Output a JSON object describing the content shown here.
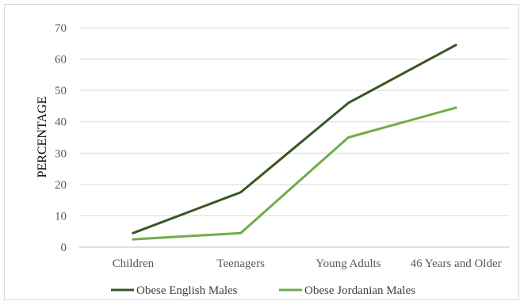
{
  "chart_data": {
    "type": "line",
    "title": "",
    "xlabel": "",
    "ylabel": "PERCENTAGE",
    "categories": [
      "Children",
      "Teenagers",
      "Young Adults",
      "46 Years and Older"
    ],
    "ylim": [
      0,
      70
    ],
    "yticks": [
      0,
      10,
      20,
      30,
      40,
      50,
      60,
      70
    ],
    "grid": "horizontal",
    "legend_position": "bottom",
    "series": [
      {
        "name": "Obese English Males",
        "color": "#375623",
        "values": [
          4.5,
          17.5,
          46,
          64.5
        ]
      },
      {
        "name": "Obese Jordanian Males",
        "color": "#70ad47",
        "values": [
          2.5,
          4.5,
          35,
          44.5
        ]
      }
    ]
  }
}
